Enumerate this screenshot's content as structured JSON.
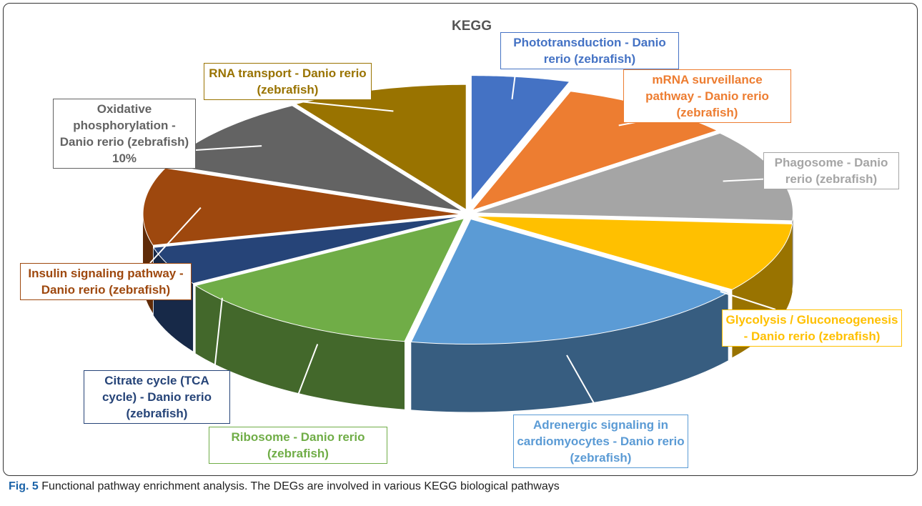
{
  "chart_data": {
    "type": "pie",
    "title": "KEGG",
    "categories": [
      "Phototransduction - Danio rerio (zebrafish)",
      "mRNA surveillance pathway - Danio rerio (zebrafish)",
      "Phagosome - Danio rerio (zebrafish)",
      "Glycolysis / Gluconeogenesis - Danio rerio (zebrafish)",
      "Adrenergic signaling in cardiomyocytes - Danio rerio (zebrafish)",
      "Ribosome - Danio rerio (zebrafish)",
      "Citrate cycle (TCA cycle) - Danio rerio (zebrafish)",
      "Insulin signaling pathway - Danio rerio (zebrafish)",
      "Oxidative phosphorylation - Danio rerio (zebrafish)",
      "RNA transport - Danio rerio (zebrafish)"
    ],
    "values": [
      5,
      9,
      12,
      9,
      18,
      13,
      5,
      10,
      10,
      9
    ],
    "value_labels": [
      null,
      null,
      null,
      null,
      null,
      null,
      null,
      null,
      "10%",
      null
    ],
    "colors": [
      "#4472c4",
      "#ed7d31",
      "#a5a5a5",
      "#ffc000",
      "#5b9bd5",
      "#70ad47",
      "#264478",
      "#9e480e",
      "#636363",
      "#997300"
    ]
  },
  "caption": {
    "label": "Fig. 5",
    "text": "Functional pathway enrichment analysis. The DEGs are involved in various KEGG biological pathways"
  }
}
